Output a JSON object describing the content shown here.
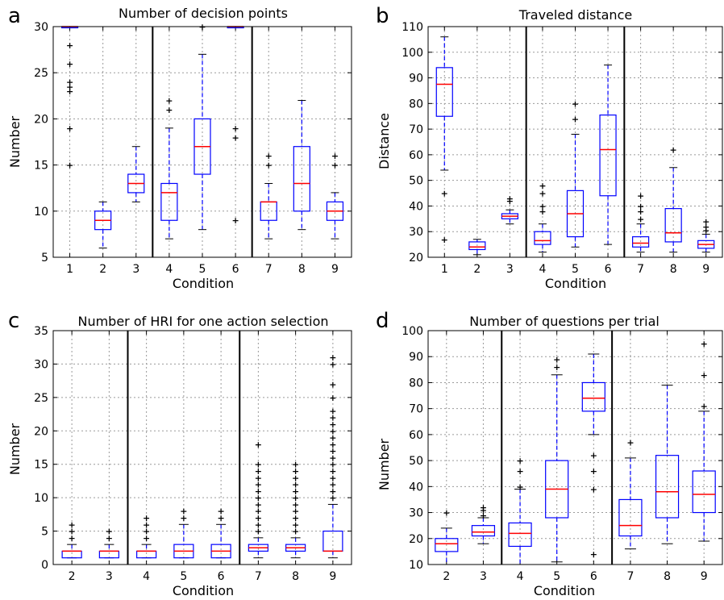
{
  "chart_data": [
    {
      "type": "box",
      "panel_letter": "a",
      "title": "Number of decision points",
      "xlabel": "Condition",
      "ylabel": "Number",
      "ylim": [
        5,
        30
      ],
      "yticks": [
        5,
        10,
        15,
        20,
        25,
        30
      ],
      "grid": true,
      "group_separators_after": [
        "3",
        "6"
      ],
      "boxes": [
        {
          "x": "1",
          "q1": 30,
          "median": 30,
          "q3": 30,
          "whisker_low": 30,
          "whisker_high": 30,
          "outliers": [
            28,
            26,
            24,
            23.5,
            23,
            19,
            15
          ]
        },
        {
          "x": "2",
          "q1": 8,
          "median": 9,
          "q3": 10,
          "whisker_low": 6,
          "whisker_high": 11,
          "outliers": []
        },
        {
          "x": "3",
          "q1": 12,
          "median": 13,
          "q3": 14,
          "whisker_low": 11,
          "whisker_high": 17,
          "outliers": []
        },
        {
          "x": "4",
          "q1": 9,
          "median": 12,
          "q3": 13,
          "whisker_low": 7,
          "whisker_high": 19,
          "outliers": [
            22,
            21
          ]
        },
        {
          "x": "5",
          "q1": 14,
          "median": 17,
          "q3": 20,
          "whisker_low": 8,
          "whisker_high": 27,
          "outliers": [
            30
          ]
        },
        {
          "x": "6",
          "q1": 30,
          "median": 30,
          "q3": 30,
          "whisker_low": 30,
          "whisker_high": 30,
          "outliers": [
            19,
            18,
            9
          ]
        },
        {
          "x": "7",
          "q1": 9,
          "median": 11,
          "q3": 11,
          "whisker_low": 7,
          "whisker_high": 13,
          "outliers": [
            16,
            15
          ]
        },
        {
          "x": "8",
          "q1": 10,
          "median": 13,
          "q3": 17,
          "whisker_low": 8,
          "whisker_high": 22,
          "outliers": []
        },
        {
          "x": "9",
          "q1": 9,
          "median": 10,
          "q3": 11,
          "whisker_low": 7,
          "whisker_high": 12,
          "outliers": [
            16,
            15
          ]
        }
      ]
    },
    {
      "type": "box",
      "panel_letter": "b",
      "title": "Traveled distance",
      "xlabel": "Condition",
      "ylabel": "Distance",
      "ylim": [
        20,
        110
      ],
      "yticks": [
        20,
        30,
        40,
        50,
        60,
        70,
        80,
        90,
        100,
        110
      ],
      "grid": true,
      "group_separators_after": [
        "3",
        "6"
      ],
      "boxes": [
        {
          "x": "1",
          "q1": 75,
          "median": 87.5,
          "q3": 94,
          "whisker_low": 54,
          "whisker_high": 106,
          "outliers": [
            45,
            27
          ]
        },
        {
          "x": "2",
          "q1": 23,
          "median": 24,
          "q3": 26,
          "whisker_low": 21,
          "whisker_high": 27,
          "outliers": []
        },
        {
          "x": "3",
          "q1": 35,
          "median": 36,
          "q3": 37,
          "whisker_low": 33,
          "whisker_high": 38.5,
          "outliers": [
            42,
            43
          ]
        },
        {
          "x": "4",
          "q1": 25,
          "median": 26.5,
          "q3": 30,
          "whisker_low": 22,
          "whisker_high": 33,
          "outliers": [
            48,
            45,
            40,
            38
          ]
        },
        {
          "x": "5",
          "q1": 28,
          "median": 37,
          "q3": 46,
          "whisker_low": 24,
          "whisker_high": 68,
          "outliers": [
            80,
            74
          ]
        },
        {
          "x": "6",
          "q1": 44,
          "median": 62,
          "q3": 75.5,
          "whisker_low": 25,
          "whisker_high": 95,
          "outliers": []
        },
        {
          "x": "7",
          "q1": 24,
          "median": 25.5,
          "q3": 28,
          "whisker_low": 22,
          "whisker_high": 33,
          "outliers": [
            44,
            40,
            38,
            35
          ]
        },
        {
          "x": "8",
          "q1": 26,
          "median": 29.5,
          "q3": 39,
          "whisker_low": 22,
          "whisker_high": 55,
          "outliers": [
            62
          ]
        },
        {
          "x": "9",
          "q1": 23.5,
          "median": 25,
          "q3": 26.5,
          "whisker_low": 22,
          "whisker_high": 29,
          "outliers": [
            34,
            32,
            30.5
          ]
        }
      ]
    },
    {
      "type": "box",
      "panel_letter": "c",
      "title": "Number of HRI for one action selection",
      "xlabel": "Condition",
      "ylabel": "Number",
      "ylim": [
        0,
        35
      ],
      "yticks": [
        0,
        5,
        10,
        15,
        20,
        25,
        30,
        35
      ],
      "grid": true,
      "group_separators_after": [
        "3",
        "6"
      ],
      "boxes": [
        {
          "x": "2",
          "q1": 1,
          "median": 2,
          "q3": 2,
          "whisker_low": 1,
          "whisker_high": 3,
          "outliers": [
            4,
            5,
            6
          ]
        },
        {
          "x": "3",
          "q1": 1,
          "median": 2,
          "q3": 2,
          "whisker_low": 1,
          "whisker_high": 3,
          "outliers": [
            4,
            5
          ]
        },
        {
          "x": "4",
          "q1": 1,
          "median": 2,
          "q3": 2,
          "whisker_low": 1,
          "whisker_high": 3,
          "outliers": [
            4,
            5,
            6,
            7
          ]
        },
        {
          "x": "5",
          "q1": 1,
          "median": 2,
          "q3": 3,
          "whisker_low": 1,
          "whisker_high": 6,
          "outliers": [
            7,
            8
          ]
        },
        {
          "x": "6",
          "q1": 1,
          "median": 2,
          "q3": 3,
          "whisker_low": 1,
          "whisker_high": 6,
          "outliers": [
            7,
            8
          ]
        },
        {
          "x": "7",
          "q1": 2,
          "median": 2.5,
          "q3": 3,
          "whisker_low": 1,
          "whisker_high": 4,
          "outliers": [
            5,
            6,
            7,
            8,
            9,
            10,
            11,
            12,
            13,
            14,
            15,
            18
          ]
        },
        {
          "x": "8",
          "q1": 2,
          "median": 2.5,
          "q3": 3,
          "whisker_low": 1,
          "whisker_high": 4,
          "outliers": [
            5,
            6,
            7,
            8,
            9,
            10,
            11,
            12,
            13,
            14,
            15
          ]
        },
        {
          "x": "9",
          "q1": 2,
          "median": 2,
          "q3": 5,
          "whisker_low": 1,
          "whisker_high": 9,
          "outliers": [
            10,
            11,
            12,
            13,
            14,
            15,
            16,
            17,
            18,
            19,
            20,
            21,
            22,
            23,
            25,
            27,
            30,
            31
          ]
        }
      ]
    },
    {
      "type": "box",
      "panel_letter": "d",
      "title": "Number of questions per trial",
      "xlabel": "Condition",
      "ylabel": "Number",
      "ylim": [
        10,
        100
      ],
      "yticks": [
        10,
        20,
        30,
        40,
        50,
        60,
        70,
        80,
        90,
        100
      ],
      "grid": true,
      "group_separators_after": [
        "3",
        "6"
      ],
      "boxes": [
        {
          "x": "2",
          "q1": 15,
          "median": 18,
          "q3": 20,
          "whisker_low": 10,
          "whisker_high": 24,
          "outliers": [
            30
          ]
        },
        {
          "x": "3",
          "q1": 21,
          "median": 22.5,
          "q3": 25,
          "whisker_low": 18,
          "whisker_high": 28,
          "outliers": [
            29,
            31,
            32
          ]
        },
        {
          "x": "4",
          "q1": 17,
          "median": 22,
          "q3": 26,
          "whisker_low": 10,
          "whisker_high": 39,
          "outliers": [
            40,
            46,
            50
          ]
        },
        {
          "x": "5",
          "q1": 28,
          "median": 39,
          "q3": 50,
          "whisker_low": 11,
          "whisker_high": 83,
          "outliers": [
            86,
            89
          ]
        },
        {
          "x": "6",
          "q1": 69,
          "median": 74,
          "q3": 80,
          "whisker_low": 60,
          "whisker_high": 91,
          "outliers": [
            52,
            46,
            39,
            14
          ]
        },
        {
          "x": "7",
          "q1": 21,
          "median": 25,
          "q3": 35,
          "whisker_low": 16,
          "whisker_high": 51,
          "outliers": [
            57
          ]
        },
        {
          "x": "8",
          "q1": 28,
          "median": 38,
          "q3": 52,
          "whisker_low": 18,
          "whisker_high": 79,
          "outliers": []
        },
        {
          "x": "9",
          "q1": 30,
          "median": 37,
          "q3": 46,
          "whisker_low": 19,
          "whisker_high": 69,
          "outliers": [
            71,
            83,
            95
          ]
        }
      ]
    }
  ]
}
